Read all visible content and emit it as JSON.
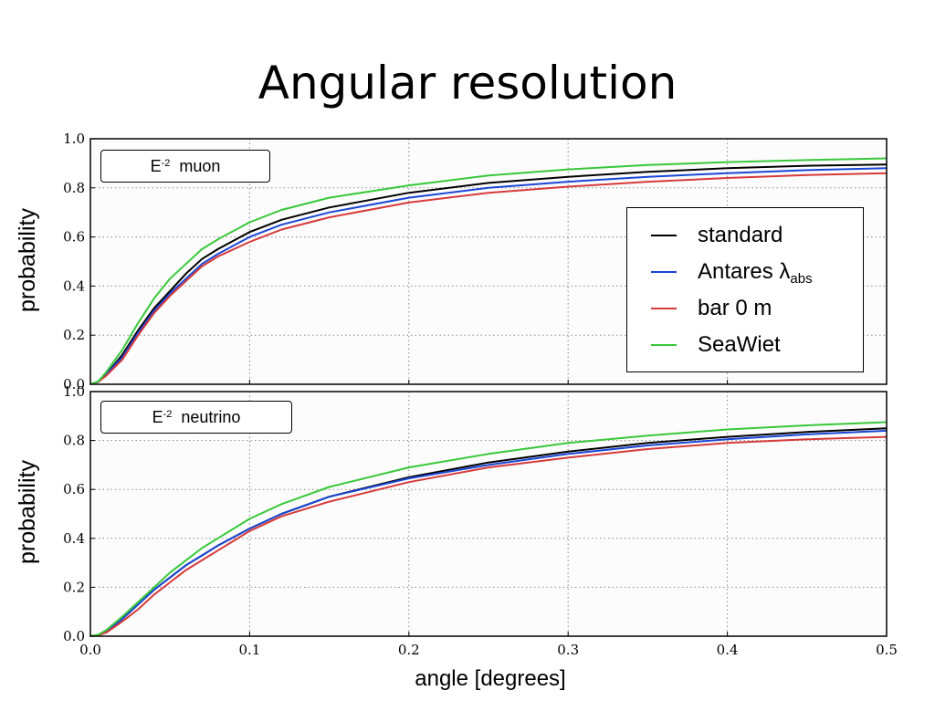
{
  "slide": {
    "title": "Angular resolution"
  },
  "legend": [
    {
      "label": "standard",
      "sub": "",
      "color": "#000000"
    },
    {
      "label": "Antares λ",
      "sub": "abs",
      "color": "#1a47d6"
    },
    {
      "label": "bar 0 m",
      "sub": "",
      "color": "#d63a3a"
    },
    {
      "label": "SeaWiet",
      "sub": "",
      "color": "#38c83a"
    }
  ],
  "chart_data": [
    {
      "type": "line",
      "panel_label": "E",
      "panel_label_sup": "-2",
      "panel_label_rest": "muon",
      "ylabel": "probability",
      "xlabel": "",
      "xlim": [
        0,
        0.5
      ],
      "ylim": [
        0,
        1.0
      ],
      "x_ticks": [],
      "y_ticks": [
        "0.0",
        "0.2",
        "0.4",
        "0.6",
        "0.8",
        "1.0"
      ],
      "grid": true,
      "x": [
        0,
        0.005,
        0.01,
        0.02,
        0.03,
        0.04,
        0.05,
        0.06,
        0.07,
        0.08,
        0.1,
        0.12,
        0.15,
        0.2,
        0.25,
        0.3,
        0.35,
        0.4,
        0.45,
        0.5
      ],
      "series": [
        {
          "name": "standard",
          "color": "#000000",
          "values": [
            0,
            0.01,
            0.04,
            0.12,
            0.22,
            0.31,
            0.38,
            0.45,
            0.51,
            0.55,
            0.62,
            0.67,
            0.72,
            0.78,
            0.82,
            0.845,
            0.865,
            0.88,
            0.89,
            0.895
          ]
        },
        {
          "name": "Antares λabs",
          "color": "#1a47d6",
          "values": [
            0,
            0.01,
            0.04,
            0.11,
            0.21,
            0.3,
            0.37,
            0.43,
            0.49,
            0.53,
            0.6,
            0.65,
            0.7,
            0.76,
            0.8,
            0.825,
            0.845,
            0.86,
            0.872,
            0.88
          ]
        },
        {
          "name": "bar 0 m",
          "color": "#d63a3a",
          "values": [
            0,
            0.01,
            0.035,
            0.1,
            0.2,
            0.29,
            0.36,
            0.42,
            0.48,
            0.52,
            0.58,
            0.63,
            0.68,
            0.74,
            0.78,
            0.805,
            0.825,
            0.84,
            0.852,
            0.86
          ]
        },
        {
          "name": "SeaWiet",
          "color": "#38c83a",
          "values": [
            0,
            0.012,
            0.05,
            0.14,
            0.25,
            0.35,
            0.43,
            0.49,
            0.55,
            0.59,
            0.66,
            0.71,
            0.76,
            0.81,
            0.85,
            0.875,
            0.893,
            0.905,
            0.913,
            0.92
          ]
        }
      ]
    },
    {
      "type": "line",
      "panel_label": "E",
      "panel_label_sup": "-2",
      "panel_label_rest": "neutrino",
      "ylabel": "probability",
      "xlabel": "angle [degrees]",
      "xlim": [
        0,
        0.5
      ],
      "ylim": [
        0,
        1.0
      ],
      "x_ticks": [
        "0.0",
        "0.1",
        "0.2",
        "0.3",
        "0.4",
        "0.5"
      ],
      "y_ticks": [
        "0.0",
        "0.2",
        "0.4",
        "0.6",
        "0.8",
        "1.0"
      ],
      "grid": true,
      "x": [
        0,
        0.005,
        0.01,
        0.02,
        0.03,
        0.04,
        0.05,
        0.06,
        0.07,
        0.08,
        0.1,
        0.12,
        0.15,
        0.2,
        0.25,
        0.3,
        0.35,
        0.4,
        0.45,
        0.5
      ],
      "series": [
        {
          "name": "standard",
          "color": "#000000",
          "values": [
            0,
            0.005,
            0.02,
            0.07,
            0.13,
            0.19,
            0.24,
            0.29,
            0.33,
            0.37,
            0.44,
            0.5,
            0.57,
            0.65,
            0.71,
            0.755,
            0.79,
            0.815,
            0.835,
            0.85
          ]
        },
        {
          "name": "Antares λabs",
          "color": "#1a47d6",
          "values": [
            0,
            0.005,
            0.02,
            0.07,
            0.13,
            0.19,
            0.24,
            0.29,
            0.33,
            0.37,
            0.44,
            0.5,
            0.57,
            0.645,
            0.7,
            0.745,
            0.78,
            0.805,
            0.825,
            0.84
          ]
        },
        {
          "name": "bar 0 m",
          "color": "#d63a3a",
          "values": [
            0,
            0.004,
            0.015,
            0.06,
            0.11,
            0.17,
            0.22,
            0.27,
            0.31,
            0.35,
            0.43,
            0.49,
            0.55,
            0.63,
            0.69,
            0.73,
            0.765,
            0.79,
            0.805,
            0.815
          ]
        },
        {
          "name": "SeaWiet",
          "color": "#38c83a",
          "values": [
            0,
            0.006,
            0.025,
            0.08,
            0.14,
            0.2,
            0.26,
            0.31,
            0.36,
            0.4,
            0.48,
            0.54,
            0.61,
            0.69,
            0.745,
            0.79,
            0.82,
            0.845,
            0.862,
            0.875
          ]
        }
      ]
    }
  ]
}
